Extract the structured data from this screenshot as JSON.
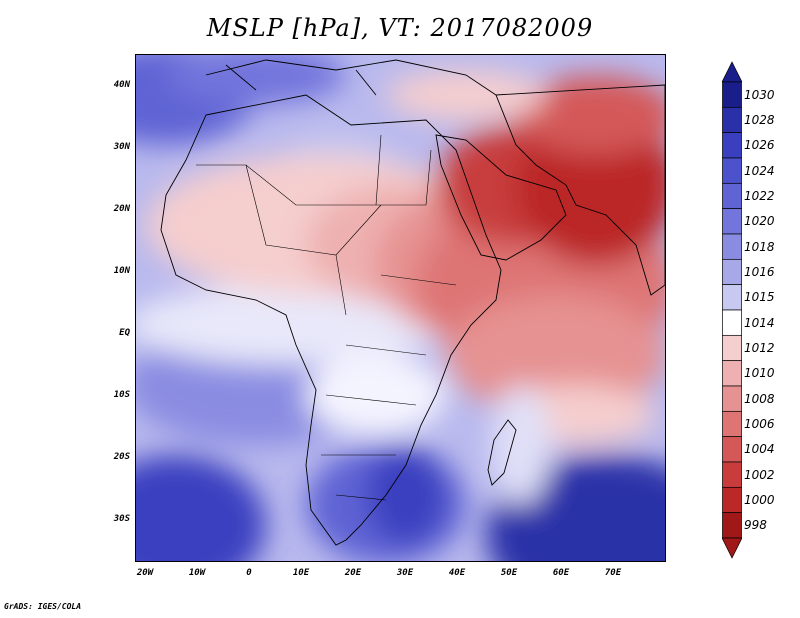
{
  "title": "MSLP [hPa], VT: 2017082009",
  "credit": "GrADS: IGES/COLA",
  "map": {
    "lat_labels": [
      "40N",
      "30N",
      "20N",
      "10N",
      "EQ",
      "10S",
      "20S",
      "30S"
    ],
    "lon_labels": [
      "20W",
      "10W",
      "0",
      "10E",
      "20E",
      "30E",
      "40E",
      "50E",
      "60E",
      "70E"
    ],
    "region": "Africa / Middle East"
  },
  "colorbar": {
    "labels": [
      "1030",
      "1028",
      "1026",
      "1024",
      "1022",
      "1020",
      "1018",
      "1016",
      "1015",
      "1014",
      "1012",
      "1010",
      "1008",
      "1006",
      "1004",
      "1002",
      "1000",
      "998"
    ],
    "colors": [
      "#1a1e8a",
      "#2a30a8",
      "#3a3fc0",
      "#4c51cc",
      "#5f63d4",
      "#7275dc",
      "#8a8ce2",
      "#a6a8e8",
      "#c8c9f0",
      "#ffffff",
      "#f5cece",
      "#eeb0b0",
      "#e69292",
      "#de7474",
      "#d45858",
      "#c83c3c",
      "#bb2828",
      "#a01818"
    ]
  }
}
